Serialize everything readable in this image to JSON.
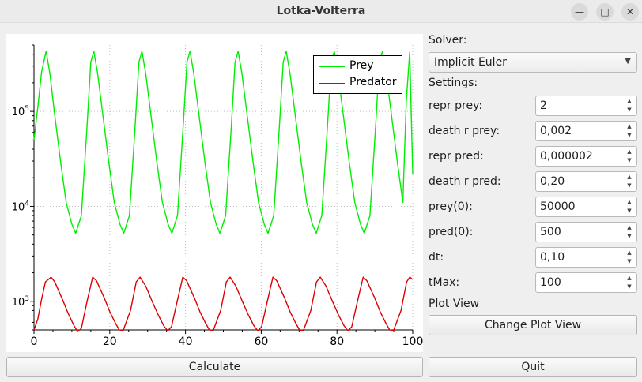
{
  "window": {
    "title": "Lotka-Volterra",
    "minimize_glyph": "—",
    "maximize_glyph": "□",
    "close_glyph": "✕"
  },
  "solver": {
    "label": "Solver:",
    "selected": "Implicit Euler",
    "dropdown_icon": "chevron-down-icon"
  },
  "settings": {
    "label": "Settings:",
    "fields": [
      {
        "label": "repr prey:",
        "value": "2"
      },
      {
        "label": "death r prey:",
        "value": "0,002"
      },
      {
        "label": "repr pred:",
        "value": "0,000002"
      },
      {
        "label": "death r pred:",
        "value": "0,20"
      },
      {
        "label": "prey(0):",
        "value": "50000"
      },
      {
        "label": "pred(0):",
        "value": "500"
      },
      {
        "label": "dt:",
        "value": "0,10"
      },
      {
        "label": "tMax:",
        "value": "100"
      }
    ]
  },
  "plot_view": {
    "label": "Plot View",
    "button_label": "Change Plot View"
  },
  "buttons": {
    "calculate": "Calculate",
    "quit": "Quit"
  },
  "chart_data": {
    "type": "line",
    "title": "",
    "xlabel": "",
    "ylabel": "",
    "xlim": [
      0,
      100
    ],
    "ylim": [
      500,
      500000
    ],
    "yscale": "log",
    "grid": true,
    "legend_position": "top-right",
    "x_ticks": [
      0,
      20,
      40,
      60,
      80,
      100
    ],
    "y_ticks": [
      {
        "value": 1000,
        "base": "10",
        "exp": "3"
      },
      {
        "value": 10000,
        "base": "10",
        "exp": "4"
      },
      {
        "value": 100000,
        "base": "10",
        "exp": "5"
      }
    ],
    "series": [
      {
        "name": "Prey",
        "color": "#00ee00",
        "points": [
          [
            0,
            50000
          ],
          [
            1,
            110000
          ],
          [
            2,
            260000
          ],
          [
            3.2,
            430000
          ],
          [
            4.2,
            250000
          ],
          [
            5.5,
            90000
          ],
          [
            7,
            30000
          ],
          [
            8.5,
            11000
          ],
          [
            10,
            6500
          ],
          [
            11,
            5200
          ],
          [
            12.5,
            8000
          ],
          [
            14,
            70000
          ],
          [
            15,
            330000
          ],
          [
            15.8,
            430000
          ],
          [
            16.8,
            250000
          ],
          [
            18.2,
            90000
          ],
          [
            19.7,
            30000
          ],
          [
            21.2,
            11000
          ],
          [
            22.7,
            6500
          ],
          [
            23.7,
            5200
          ],
          [
            25.2,
            8000
          ],
          [
            26.7,
            70000
          ],
          [
            27.7,
            330000
          ],
          [
            28.5,
            430000
          ],
          [
            29.5,
            250000
          ],
          [
            30.9,
            90000
          ],
          [
            32.4,
            30000
          ],
          [
            33.9,
            11000
          ],
          [
            35.4,
            6500
          ],
          [
            36.4,
            5200
          ],
          [
            37.9,
            8000
          ],
          [
            39.4,
            70000
          ],
          [
            40.4,
            330000
          ],
          [
            41.2,
            430000
          ],
          [
            42.2,
            250000
          ],
          [
            43.6,
            90000
          ],
          [
            45.1,
            30000
          ],
          [
            46.6,
            11000
          ],
          [
            48.1,
            6500
          ],
          [
            49.1,
            5200
          ],
          [
            50.6,
            8000
          ],
          [
            52.1,
            70000
          ],
          [
            53.1,
            330000
          ],
          [
            53.9,
            430000
          ],
          [
            54.9,
            250000
          ],
          [
            56.3,
            90000
          ],
          [
            57.8,
            30000
          ],
          [
            59.3,
            11000
          ],
          [
            60.8,
            6500
          ],
          [
            61.8,
            5200
          ],
          [
            63.3,
            8000
          ],
          [
            64.8,
            70000
          ],
          [
            65.8,
            330000
          ],
          [
            66.6,
            430000
          ],
          [
            67.6,
            250000
          ],
          [
            69,
            90000
          ],
          [
            70.5,
            30000
          ],
          [
            72,
            11000
          ],
          [
            73.5,
            6500
          ],
          [
            74.5,
            5200
          ],
          [
            76,
            8000
          ],
          [
            77.5,
            70000
          ],
          [
            78.5,
            330000
          ],
          [
            79.3,
            430000
          ],
          [
            80.3,
            250000
          ],
          [
            81.7,
            90000
          ],
          [
            83.2,
            30000
          ],
          [
            84.7,
            11000
          ],
          [
            86.2,
            6500
          ],
          [
            87.2,
            5200
          ],
          [
            88.7,
            8000
          ],
          [
            90.2,
            70000
          ],
          [
            91.2,
            330000
          ],
          [
            92,
            430000
          ],
          [
            93,
            250000
          ],
          [
            94.4,
            90000
          ],
          [
            95.9,
            30000
          ],
          [
            97.4,
            11000
          ],
          [
            98.3,
            130000
          ],
          [
            99.2,
            420000
          ],
          [
            100,
            22000
          ]
        ]
      },
      {
        "name": "Predator",
        "color": "#dd0000",
        "points": [
          [
            0,
            500
          ],
          [
            1,
            650
          ],
          [
            2,
            1050
          ],
          [
            3,
            1600
          ],
          [
            4.5,
            1800
          ],
          [
            5.5,
            1600
          ],
          [
            7.5,
            1050
          ],
          [
            9,
            750
          ],
          [
            10.5,
            560
          ],
          [
            11.5,
            480
          ],
          [
            12.5,
            520
          ],
          [
            14,
            1000
          ],
          [
            15.5,
            1800
          ],
          [
            16.5,
            1650
          ],
          [
            18.5,
            1100
          ],
          [
            20,
            780
          ],
          [
            21.5,
            590
          ],
          [
            22.5,
            500
          ],
          [
            23.5,
            490
          ],
          [
            25.5,
            800
          ],
          [
            27,
            1600
          ],
          [
            28,
            1800
          ],
          [
            29.5,
            1450
          ],
          [
            31.2,
            1000
          ],
          [
            32.8,
            720
          ],
          [
            34.3,
            550
          ],
          [
            35.3,
            490
          ],
          [
            36.3,
            540
          ],
          [
            37.8,
            1000
          ],
          [
            39.3,
            1800
          ],
          [
            40.3,
            1650
          ],
          [
            42.3,
            1100
          ],
          [
            43.8,
            780
          ],
          [
            45.3,
            590
          ],
          [
            46.3,
            500
          ],
          [
            47.3,
            490
          ],
          [
            49.3,
            800
          ],
          [
            50.8,
            1600
          ],
          [
            51.8,
            1800
          ],
          [
            53.3,
            1450
          ],
          [
            55,
            1000
          ],
          [
            56.6,
            720
          ],
          [
            58.1,
            550
          ],
          [
            59.1,
            490
          ],
          [
            60.1,
            540
          ],
          [
            61.6,
            1000
          ],
          [
            63.1,
            1800
          ],
          [
            64.1,
            1650
          ],
          [
            66.1,
            1100
          ],
          [
            67.6,
            780
          ],
          [
            69.1,
            590
          ],
          [
            70.1,
            500
          ],
          [
            71.1,
            490
          ],
          [
            73.1,
            800
          ],
          [
            74.6,
            1600
          ],
          [
            75.6,
            1800
          ],
          [
            77.1,
            1450
          ],
          [
            78.8,
            1000
          ],
          [
            80.4,
            720
          ],
          [
            81.9,
            550
          ],
          [
            82.9,
            490
          ],
          [
            83.9,
            540
          ],
          [
            85.4,
            1000
          ],
          [
            86.9,
            1800
          ],
          [
            87.9,
            1650
          ],
          [
            89.9,
            1100
          ],
          [
            91.4,
            780
          ],
          [
            92.9,
            590
          ],
          [
            93.9,
            500
          ],
          [
            94.9,
            490
          ],
          [
            96.9,
            800
          ],
          [
            98.4,
            1600
          ],
          [
            99.2,
            1800
          ],
          [
            100,
            1700
          ]
        ]
      }
    ]
  }
}
